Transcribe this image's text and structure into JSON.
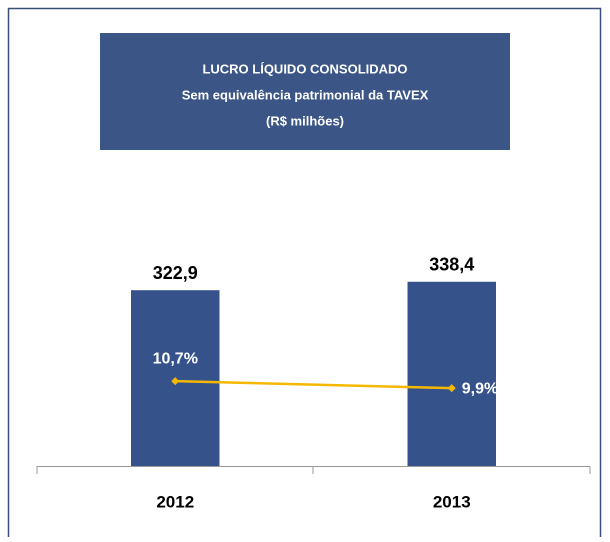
{
  "chart_data": {
    "type": "bar",
    "title": "LUCRO LÍQUIDO CONSOLIDADO",
    "subtitle": [
      "Sem equivalência patrimonial da TAVEX",
      "(R$ milhões)"
    ],
    "categories": [
      "2012",
      "2013"
    ],
    "ylim": [
      0,
      450
    ],
    "y2lim": [
      1,
      29
    ],
    "series": [
      {
        "type": "bar",
        "color": "#35538a",
        "values": [
          322.9,
          338.4
        ],
        "value_labels": [
          "322,9",
          "338,4"
        ]
      },
      {
        "type": "line",
        "axis": "y2",
        "color": "#f5b800",
        "values": [
          10.7,
          9.9
        ],
        "value_labels": [
          "10,7%",
          "9,9%"
        ]
      }
    ]
  }
}
